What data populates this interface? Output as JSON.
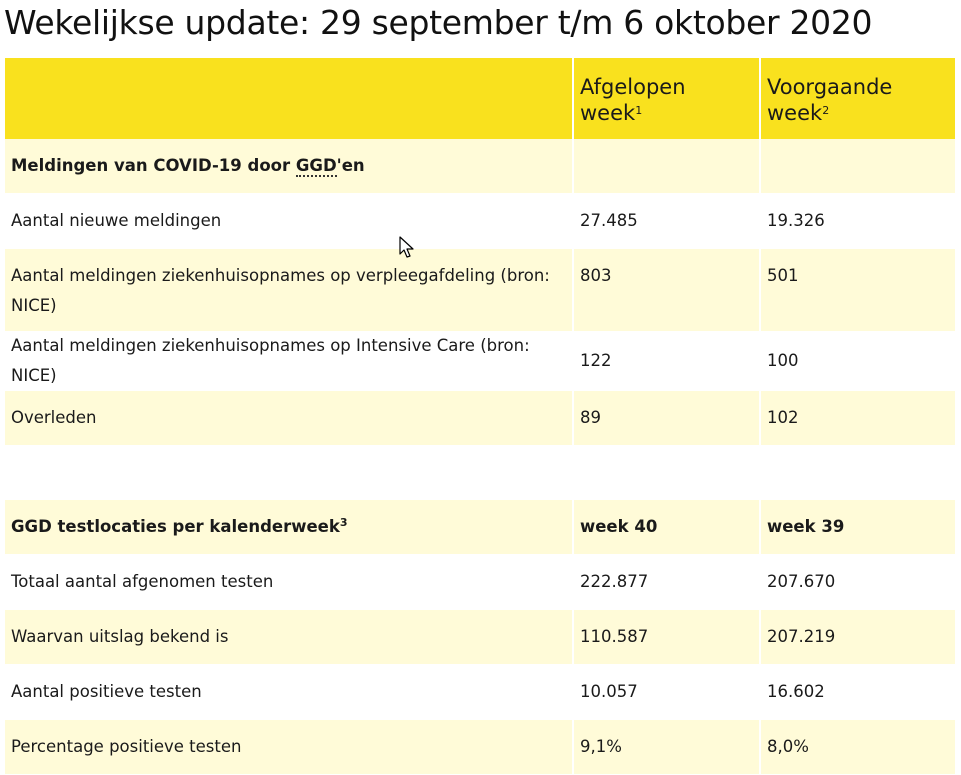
{
  "title": "Wekelijkse update: 29 september t/m 6 oktober 2020",
  "table1": {
    "header": {
      "col2": "Afgelopen week",
      "col2_sup": "1",
      "col3": "Voorgaande week",
      "col3_sup": "2"
    },
    "section": {
      "label_prefix": "Meldingen van COVID-19 door ",
      "label_abbr": "GGD",
      "label_suffix": "'en"
    },
    "rows": [
      {
        "label": "Aantal nieuwe meldingen",
        "current": "27.485",
        "previous": "19.326"
      },
      {
        "label": "Aantal meldingen ziekenhuisopnames op verpleegafdeling (bron: NICE)",
        "current": "803",
        "previous": "501"
      },
      {
        "label": "Aantal meldingen ziekenhuisopnames op Intensive Care (bron: NICE)",
        "current": "122",
        "previous": "100"
      },
      {
        "label": "Overleden",
        "current": "89",
        "previous": "102"
      }
    ]
  },
  "table2": {
    "header": {
      "label": "GGD testlocaties per kalenderweek",
      "label_sup": "3",
      "col2": "week 40",
      "col3": "week 39"
    },
    "rows": [
      {
        "label": "Totaal aantal afgenomen testen",
        "current": "222.877",
        "previous": "207.670"
      },
      {
        "label": "Waarvan uitslag bekend is",
        "current": "110.587",
        "previous": "207.219"
      },
      {
        "label": "Aantal positieve testen",
        "current": "10.057",
        "previous": "16.602"
      },
      {
        "label": "Percentage positieve testen",
        "current": "9,1%",
        "previous": "8,0%"
      }
    ]
  },
  "colors": {
    "header_yellow": "#f9e11e",
    "row_tint": "#fffbd8"
  }
}
